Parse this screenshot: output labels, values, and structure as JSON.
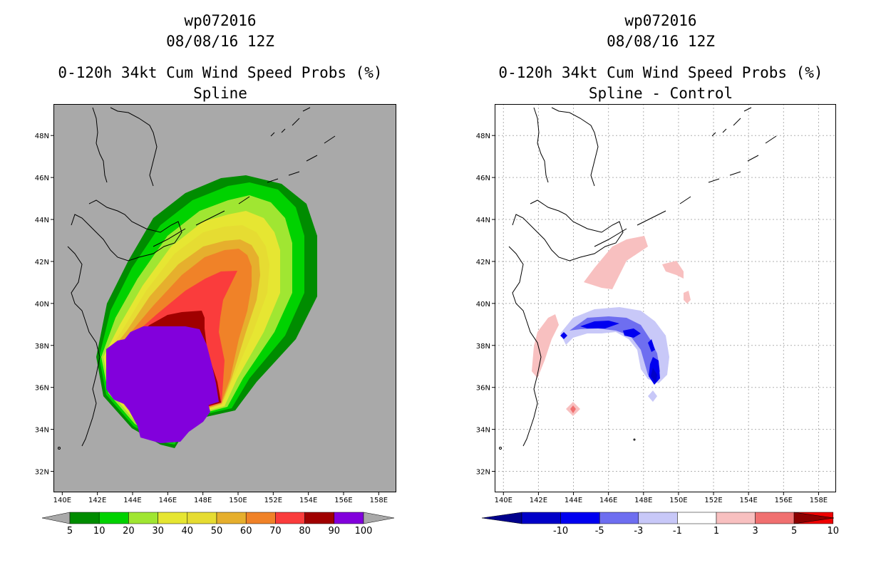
{
  "left": {
    "titles": [
      "wp072016",
      "08/08/16 12Z",
      "0-120h 34kt Cum Wind Speed Probs (%)",
      "Spline"
    ],
    "colorbar": {
      "labels": [
        "5",
        "10",
        "20",
        "30",
        "40",
        "50",
        "60",
        "70",
        "80",
        "90",
        "100"
      ],
      "colors": [
        "#008c00",
        "#00d200",
        "#a0e632",
        "#e6e632",
        "#e6dc32",
        "#e6af2d",
        "#f08228",
        "#fa3c3c",
        "#a00000",
        "#8200dc"
      ]
    }
  },
  "right": {
    "titles": [
      "wp072016",
      "08/08/16 12Z",
      "0-120h 34kt Cum Wind Speed Probs (%)",
      "Spline - Control"
    ],
    "colorbar": {
      "labels": [
        "-10",
        "-5",
        "-3",
        "-1",
        "1",
        "3",
        "5",
        "10"
      ],
      "colors": [
        "#0000c8",
        "#0000f0",
        "#6e6ef0",
        "#c8c8f8",
        "#ffffff",
        "#f8c0c0",
        "#f07070",
        "#f00000"
      ],
      "end_colors": {
        "low": "#00008c",
        "high": "#8c0000"
      }
    }
  },
  "chart_data": [
    {
      "type": "heatmap",
      "title": "0-120h 34kt Cum Wind Speed Probs (%) — Spline",
      "storm": "wp072016",
      "time": "08/08/16 12Z",
      "units": "%",
      "x_ticks": [
        "140E",
        "142E",
        "144E",
        "146E",
        "148E",
        "150E",
        "152E",
        "154E",
        "156E",
        "158E"
      ],
      "y_ticks": [
        "32N",
        "34N",
        "36N",
        "38N",
        "40N",
        "42N",
        "44N",
        "46N",
        "48N"
      ],
      "xlim": [
        139.5,
        159.0
      ],
      "ylim": [
        31.0,
        49.5
      ],
      "levels": [
        5,
        10,
        20,
        30,
        40,
        50,
        60,
        70,
        80,
        90,
        100
      ],
      "background": "#a9a9a9"
    },
    {
      "type": "heatmap",
      "title": "0-120h 34kt Cum Wind Speed Probs (%) — Spline - Control",
      "storm": "wp072016",
      "time": "08/08/16 12Z",
      "units": "%",
      "x_ticks": [
        "140E",
        "142E",
        "144E",
        "146E",
        "148E",
        "150E",
        "152E",
        "154E",
        "156E",
        "158E"
      ],
      "y_ticks": [
        "32N",
        "34N",
        "36N",
        "38N",
        "40N",
        "42N",
        "44N",
        "46N",
        "48N"
      ],
      "xlim": [
        139.5,
        159.0
      ],
      "ylim": [
        31.0,
        49.5
      ],
      "levels": [
        -10,
        -5,
        -3,
        -1,
        1,
        3,
        5,
        10
      ],
      "grid": true
    }
  ]
}
